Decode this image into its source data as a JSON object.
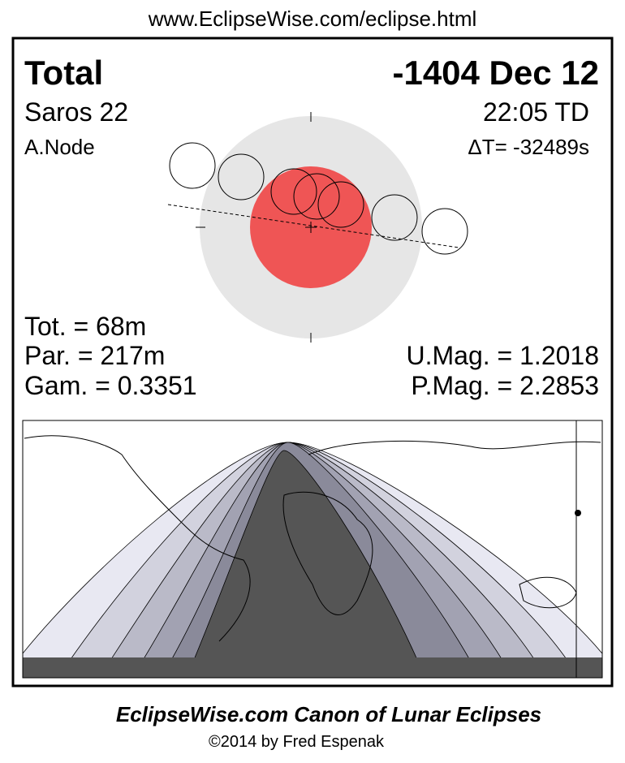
{
  "header": {
    "url": "www.EclipseWise.com/eclipse.html"
  },
  "eclipse": {
    "type": "Total",
    "date": "-1404 Dec 12",
    "saros": "Saros  22",
    "time": "22:05 TD",
    "node": "A.Node",
    "delta_t": "ΔT= -32489s"
  },
  "stats": {
    "tot": "Tot. =  68m",
    "par": "Par. = 217m",
    "gam": "Gam. = 0.3351",
    "umag": "U.Mag. = 1.2018",
    "pmag": "P.Mag. = 2.2853"
  },
  "footer": {
    "title": "EclipseWise.com Canon of Lunar Eclipses",
    "copyright": "©2014 by Fred Espenak"
  }
}
